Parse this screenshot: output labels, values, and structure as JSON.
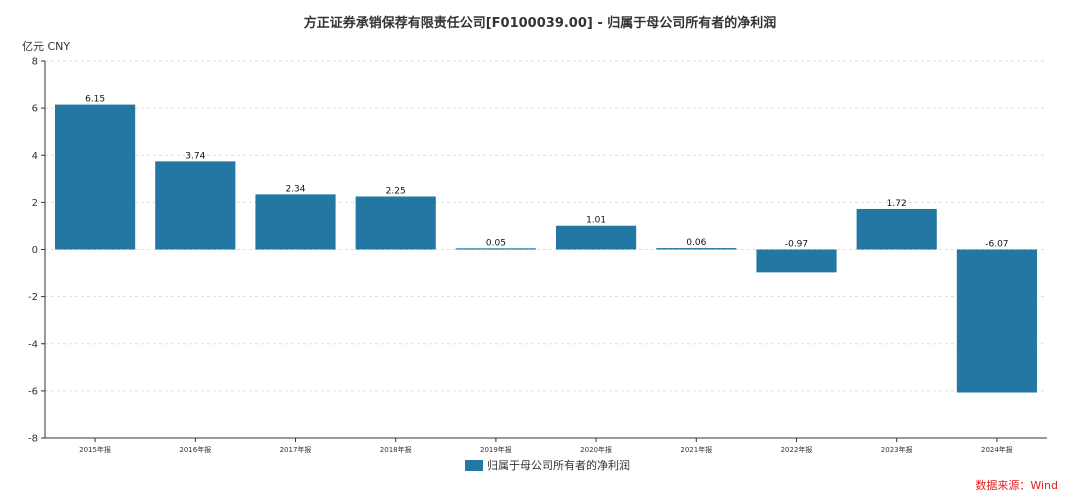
{
  "chart_data": {
    "type": "bar",
    "title": "方正证券承销保荐有限责任公司[F0100039.00] - 归属于母公司所有者的净利润",
    "unit_label": "亿元  CNY",
    "categories": [
      "2015年报",
      "2016年报",
      "2017年报",
      "2018年报",
      "2019年报",
      "2020年报",
      "2021年报",
      "2022年报",
      "2023年报",
      "2024年报"
    ],
    "series": [
      {
        "name": "归属于母公司所有者的净利润",
        "values": [
          6.15,
          3.74,
          2.34,
          2.25,
          0.05,
          1.01,
          0.06,
          -0.97,
          1.72,
          -6.07
        ],
        "data_labels": [
          "6.15",
          "3.74",
          "2.34",
          "2.25",
          "0.05",
          "1.01",
          "0.06",
          "-0.97",
          "1.72",
          "-6.07"
        ]
      }
    ],
    "ylim": [
      -8,
      8
    ],
    "yticks": [
      8,
      6,
      4,
      2,
      0,
      -2,
      -4,
      -6,
      -8
    ],
    "grid": true,
    "legend_position": "bottom-center",
    "bar_color": "#2277a3",
    "source_color": "#e02020"
  },
  "source_text": "数据来源：Wind"
}
